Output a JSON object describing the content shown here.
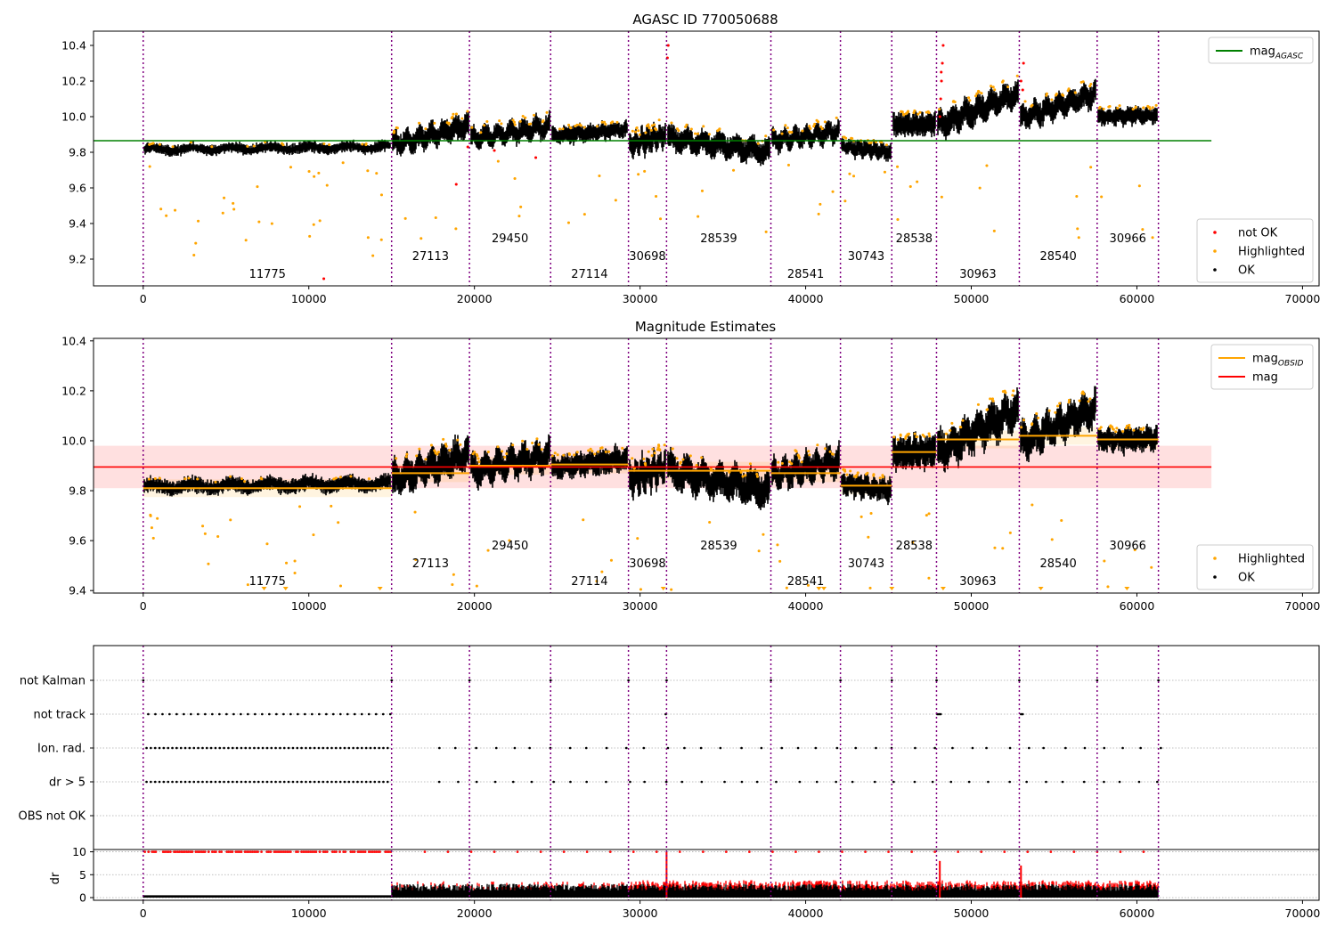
{
  "figure": {
    "panel1_title": "AGASC ID 770050688",
    "panel2_title": "Magnitude Estimates"
  },
  "chart_data": [
    {
      "type": "scatter",
      "title": "AGASC ID 770050688",
      "xlim": [
        -3000,
        71000
      ],
      "ylim": [
        9.05,
        10.48
      ],
      "xticks": [
        0,
        10000,
        20000,
        30000,
        40000,
        50000,
        60000,
        70000
      ],
      "yticks": [
        9.2,
        9.4,
        9.6,
        9.8,
        10.0,
        10.2,
        10.4
      ],
      "mag_agasc": 9.865,
      "agasc_line_xrange": [
        -3000,
        64500
      ],
      "obsid_boundaries": [
        0,
        15000,
        19700,
        24600,
        29300,
        31600,
        37900,
        42100,
        45200,
        47900,
        52900,
        57600,
        61300
      ],
      "segments": [
        {
          "label": "11775",
          "x0": 0,
          "x1": 15000,
          "base": 9.815,
          "amp": 0.015,
          "noise": 0.01,
          "label_level": 0
        },
        {
          "label": "27113",
          "x0": 15000,
          "x1": 19700,
          "base": 9.84,
          "amp": 0.11,
          "noise": 0.03,
          "label_level": 1
        },
        {
          "label": "29450",
          "x0": 19700,
          "x1": 24600,
          "base": 9.875,
          "amp": 0.07,
          "noise": 0.025,
          "label_level": 2
        },
        {
          "label": "27114",
          "x0": 24600,
          "x1": 29300,
          "base": 9.89,
          "amp": 0.04,
          "noise": 0.02,
          "label_level": 0
        },
        {
          "label": "30698",
          "x0": 29300,
          "x1": 31600,
          "base": 9.84,
          "amp": 0.06,
          "noise": 0.03,
          "label_level": 1
        },
        {
          "label": "28539",
          "x0": 31600,
          "x1": 37900,
          "base": 9.88,
          "amp": -0.08,
          "noise": 0.03,
          "label_level": 2
        },
        {
          "label": "28541",
          "x0": 37900,
          "x1": 42100,
          "base": 9.86,
          "amp": 0.06,
          "noise": 0.025,
          "label_level": 0
        },
        {
          "label": "30743",
          "x0": 42100,
          "x1": 45200,
          "base": 9.83,
          "amp": -0.03,
          "noise": 0.02,
          "label_level": 1
        },
        {
          "label": "28538",
          "x0": 45200,
          "x1": 47900,
          "base": 9.95,
          "amp": 0.01,
          "noise": 0.03,
          "label_level": 2
        },
        {
          "label": "30963",
          "x0": 47900,
          "x1": 52900,
          "base": 9.95,
          "amp": 0.18,
          "noise": 0.035,
          "label_level": 0
        },
        {
          "label": "28540",
          "x0": 52900,
          "x1": 57600,
          "base": 9.99,
          "amp": 0.14,
          "noise": 0.03,
          "label_level": 1
        },
        {
          "label": "30966",
          "x0": 57600,
          "x1": 61300,
          "base": 10.0,
          "amp": 0.01,
          "noise": 0.02,
          "label_level": 2
        }
      ],
      "legend_upper": {
        "entries": [
          {
            "label": "mag",
            "subscript": "AGASC",
            "color": "#008000"
          }
        ]
      },
      "legend_lower": {
        "entries": [
          {
            "label": "not OK",
            "color": "#ff0000"
          },
          {
            "label": "Highlighted",
            "color": "#ffa500"
          },
          {
            "label": "OK",
            "color": "#000000"
          }
        ]
      }
    },
    {
      "type": "scatter",
      "title": "Magnitude Estimates",
      "xlim": [
        -3000,
        71000
      ],
      "ylim": [
        9.39,
        10.41
      ],
      "xticks": [
        0,
        10000,
        20000,
        30000,
        40000,
        50000,
        60000,
        70000
      ],
      "yticks": [
        9.4,
        9.6,
        9.8,
        10.0,
        10.2,
        10.4
      ],
      "mag": 9.895,
      "mag_band": [
        9.81,
        9.98
      ],
      "obsid_mags": [
        9.81,
        9.87,
        9.9,
        9.905,
        9.88,
        9.88,
        9.87,
        9.82,
        9.955,
        10.005,
        10.02,
        10.005
      ],
      "legend_upper": {
        "entries": [
          {
            "label": "mag",
            "subscript": "OBSID",
            "color": "#ffa500"
          },
          {
            "label": "mag",
            "subscript": "",
            "color": "#ff0000"
          }
        ]
      },
      "legend_lower": {
        "entries": [
          {
            "label": "Highlighted",
            "color": "#ffa500"
          },
          {
            "label": "OK",
            "color": "#000000"
          }
        ]
      }
    },
    {
      "type": "scatter",
      "title": "",
      "flag_rows": [
        "not Kalman",
        "not track",
        "Ion. rad.",
        "dr > 5",
        "OBS not OK"
      ],
      "dr_yticks": [
        0,
        5,
        10
      ],
      "dr_ylabel": "dr",
      "xticks": [
        0,
        10000,
        20000,
        30000,
        40000,
        50000,
        60000,
        70000
      ]
    }
  ],
  "colors": {
    "ok": "#000000",
    "highlighted": "#ffa500",
    "not_ok": "#ff0000",
    "agasc_line": "#008000",
    "mag_line": "#ff0000",
    "obsid_line": "#ffa500",
    "boundary": "#800080",
    "boundary_alt": "#0000ff"
  }
}
